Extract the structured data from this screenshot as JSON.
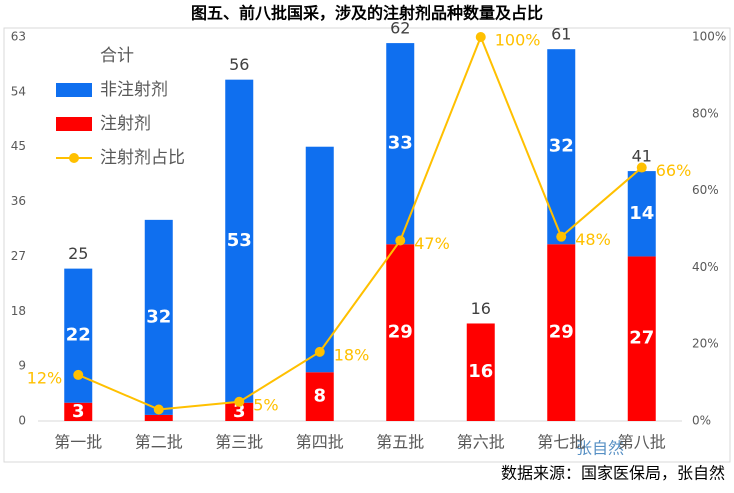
{
  "chart_data": {
    "type": "bar",
    "title": "图五、前八批国采，涉及的注射剂品种数量及占比",
    "categories": [
      "第一批",
      "第二批",
      "第三批",
      "第四批",
      "第五批",
      "第六批",
      "第七批",
      "第八批"
    ],
    "series": [
      {
        "name": "非注射剂",
        "color": "#0f6fef",
        "values": [
          22,
          32,
          53,
          37,
          33,
          0,
          32,
          14
        ],
        "value_labels": [
          "22",
          "32",
          "53",
          null,
          "33",
          null,
          "32",
          "14"
        ]
      },
      {
        "name": "注射剂",
        "color": "#ff0000",
        "values": [
          3,
          1,
          3,
          8,
          29,
          16,
          29,
          27
        ],
        "value_labels": [
          "3",
          null,
          "3",
          "8",
          "29",
          "16",
          "29",
          "27"
        ]
      },
      {
        "name": "注射剂占比",
        "color": "#ffc000",
        "axis": "y2",
        "type": "line",
        "values": [
          12,
          3,
          5,
          18,
          47,
          100,
          48,
          66
        ],
        "value_labels": [
          "12%",
          null,
          "5%",
          "18%",
          "47%",
          "100%",
          "48%",
          "66%"
        ]
      }
    ],
    "total": {
      "name": "合计",
      "values": [
        25,
        null,
        56,
        null,
        62,
        16,
        61,
        41
      ]
    },
    "ylim": [
      0,
      63
    ],
    "yticks": [
      0,
      9,
      18,
      27,
      36,
      45,
      54,
      63
    ],
    "y2lim": [
      0,
      100
    ],
    "y2ticks": [
      {
        "value": 0,
        "label": "0%"
      },
      {
        "value": 20,
        "label": "20%"
      },
      {
        "value": 40,
        "label": "40%"
      },
      {
        "value": 60,
        "label": "60%"
      },
      {
        "value": 80,
        "label": "80%"
      },
      {
        "value": 100,
        "label": "100%"
      }
    ],
    "watermark": "张自然",
    "source": "数据来源：国家医保局，张自然"
  }
}
